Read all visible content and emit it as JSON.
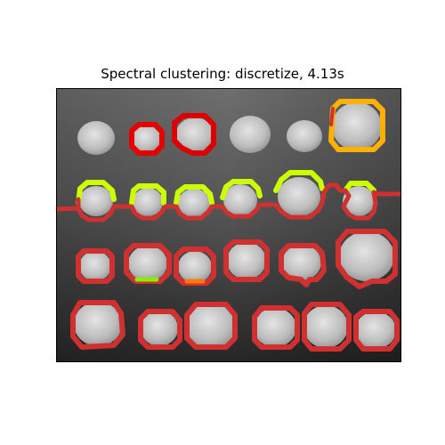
{
  "figure": {
    "title": "Spectral clustering: discretize, 4.13s"
  },
  "colors": {
    "background_dark": "#2a2a2a",
    "background_light": "#7a7a7a",
    "coin_fill": "#c9c9c9",
    "contour_red": "#d03030",
    "contour_bright_red": "#e60000",
    "contour_yellow": "#ccff00",
    "contour_gold": "#ffb000",
    "contour_green": "#88ee00",
    "contour_orange": "#ff7a00"
  }
}
